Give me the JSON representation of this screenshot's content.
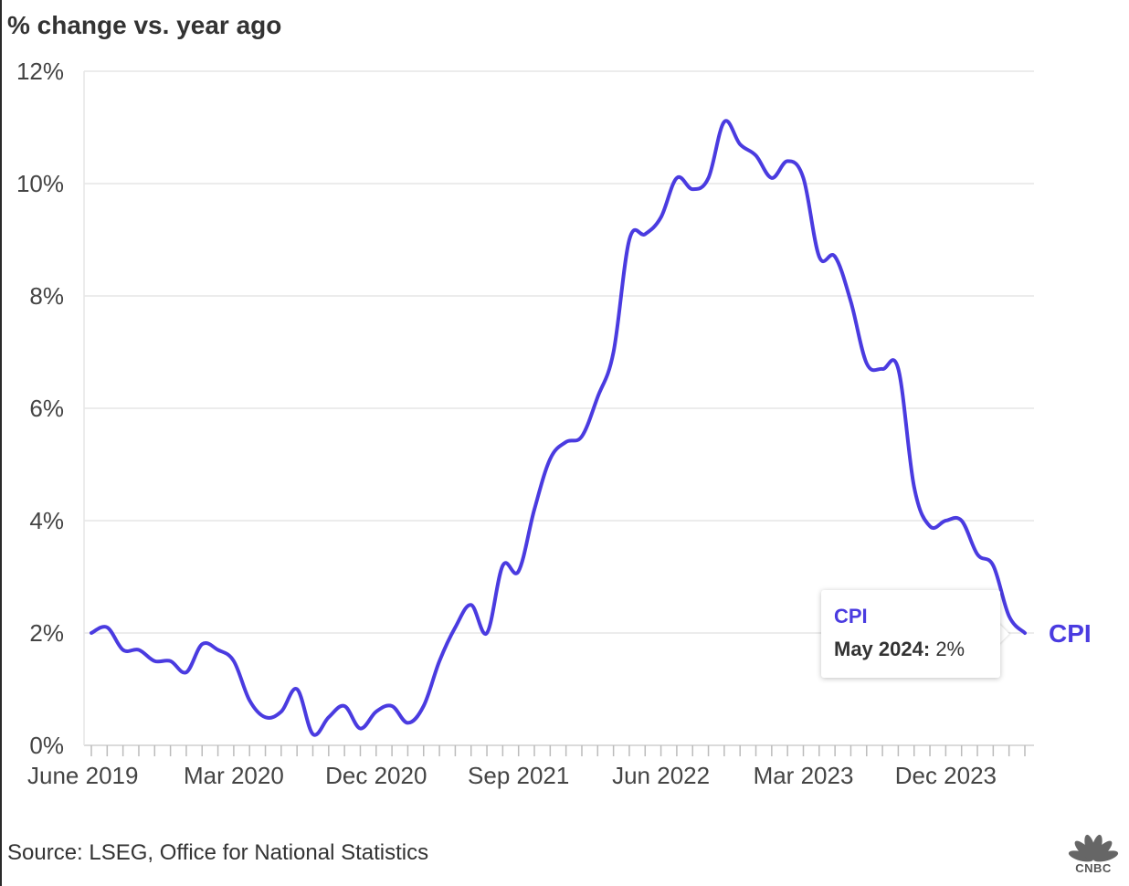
{
  "subtitle": "% change vs. year ago",
  "source": "Source: LSEG, Office for National Statistics",
  "logo_text": "CNBC",
  "tooltip": {
    "series": "CPI",
    "date": "May 2024:",
    "value": "2%"
  },
  "colors": {
    "line": "#4a3be0",
    "grid": "#e6e6e6",
    "axis_text": "#444444"
  },
  "chart_data": {
    "type": "line",
    "ylim": [
      0,
      12
    ],
    "yticks": [
      "0%",
      "2%",
      "4%",
      "6%",
      "8%",
      "10%",
      "12%"
    ],
    "xticks": [
      "June 2019",
      "Mar 2020",
      "Dec 2020",
      "Sep 2021",
      "Jun 2022",
      "Mar 2023",
      "Dec 2023"
    ],
    "grid": true,
    "end_label": "CPI",
    "series": [
      {
        "name": "CPI",
        "x": [
          "2019-06",
          "2019-07",
          "2019-08",
          "2019-09",
          "2019-10",
          "2019-11",
          "2019-12",
          "2020-01",
          "2020-02",
          "2020-03",
          "2020-04",
          "2020-05",
          "2020-06",
          "2020-07",
          "2020-08",
          "2020-09",
          "2020-10",
          "2020-11",
          "2020-12",
          "2021-01",
          "2021-02",
          "2021-03",
          "2021-04",
          "2021-05",
          "2021-06",
          "2021-07",
          "2021-08",
          "2021-09",
          "2021-10",
          "2021-11",
          "2021-12",
          "2022-01",
          "2022-02",
          "2022-03",
          "2022-04",
          "2022-05",
          "2022-06",
          "2022-07",
          "2022-08",
          "2022-09",
          "2022-10",
          "2022-11",
          "2022-12",
          "2023-01",
          "2023-02",
          "2023-03",
          "2023-04",
          "2023-05",
          "2023-06",
          "2023-07",
          "2023-08",
          "2023-09",
          "2023-10",
          "2023-11",
          "2023-12",
          "2024-01",
          "2024-02",
          "2024-03",
          "2024-04",
          "2024-05"
        ],
        "values": [
          2.0,
          2.1,
          1.7,
          1.7,
          1.5,
          1.5,
          1.3,
          1.8,
          1.7,
          1.5,
          0.8,
          0.5,
          0.6,
          1.0,
          0.2,
          0.5,
          0.7,
          0.3,
          0.6,
          0.7,
          0.4,
          0.7,
          1.5,
          2.1,
          2.5,
          2.0,
          3.2,
          3.1,
          4.2,
          5.1,
          5.4,
          5.5,
          6.2,
          7.0,
          9.0,
          9.1,
          9.4,
          10.1,
          9.9,
          10.1,
          11.1,
          10.7,
          10.5,
          10.1,
          10.4,
          10.1,
          8.7,
          8.7,
          7.9,
          6.8,
          6.7,
          6.7,
          4.6,
          3.9,
          4.0,
          4.0,
          3.4,
          3.2,
          2.3,
          2.0
        ]
      }
    ]
  }
}
